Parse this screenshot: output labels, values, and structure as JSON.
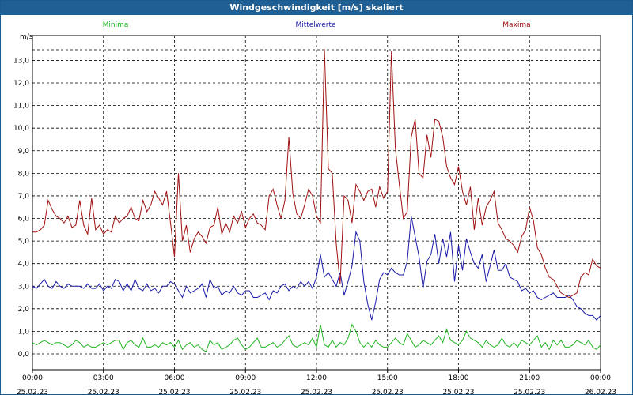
{
  "window": {
    "title": "Windgeschwindigkeit [m/s] skaliert"
  },
  "colors": {
    "minima": "#22b522",
    "mittel": "#1a1aa8",
    "maxima": "#a01010"
  },
  "chart_data": {
    "type": "line",
    "title": "Windgeschwindigkeit [m/s] skaliert",
    "ylabel": "m/s",
    "xlabel": "",
    "ylim": [
      -0.7,
      14.1
    ],
    "xlim": [
      0,
      144
    ],
    "grid": true,
    "legend": "top",
    "y_ticks": [
      "0,0",
      "1,0",
      "2,0",
      "3,0",
      "4,0",
      "5,0",
      "6,0",
      "7,0",
      "8,0",
      "9,0",
      "10,0",
      "11,0",
      "12,0",
      "13,0"
    ],
    "x_ticks": [
      {
        "time": "00:00",
        "date": "25.02.23"
      },
      {
        "time": "03:00",
        "date": "25.02.23"
      },
      {
        "time": "06:00",
        "date": "25.02.23"
      },
      {
        "time": "09:00",
        "date": "25.02.23"
      },
      {
        "time": "12:00",
        "date": "25.02.23"
      },
      {
        "time": "15:00",
        "date": "25.02.23"
      },
      {
        "time": "18:00",
        "date": "25.02.23"
      },
      {
        "time": "21:00",
        "date": "25.02.23"
      },
      {
        "time": "00:00",
        "date": "26.02.23"
      }
    ],
    "series": [
      {
        "name": "Minima",
        "key": "minima",
        "x": [
          0,
          1,
          2,
          3,
          4,
          5,
          6,
          7,
          8,
          9,
          10,
          11,
          12,
          13,
          14,
          15,
          16,
          17,
          18,
          19,
          20,
          21,
          22,
          23,
          24,
          25,
          26,
          27,
          28,
          29,
          30,
          31,
          32,
          33,
          34,
          35,
          36,
          37,
          38,
          39,
          40,
          41,
          42,
          43,
          44,
          45,
          46,
          47,
          48,
          49,
          50,
          51,
          52,
          53,
          54,
          55,
          56,
          57,
          58,
          59,
          60,
          61,
          62,
          63,
          64,
          65,
          66,
          67,
          68,
          69,
          70,
          71,
          72,
          73,
          74,
          75,
          76,
          77,
          78,
          79,
          80,
          81,
          82,
          83,
          84,
          85,
          86,
          87,
          88,
          89,
          90,
          91,
          92,
          93,
          94,
          95,
          96,
          97,
          98,
          99,
          100,
          101,
          102,
          103,
          104,
          105,
          106,
          107,
          108,
          109,
          110,
          111,
          112,
          113,
          114,
          115,
          116,
          117,
          118,
          119,
          120,
          121,
          122,
          123,
          124,
          125,
          126,
          127,
          128,
          129,
          130,
          131,
          132,
          133,
          134,
          135,
          136,
          137,
          138,
          139,
          140,
          141,
          142,
          143,
          144
        ],
        "values": [
          0.5,
          0.4,
          0.5,
          0.6,
          0.5,
          0.4,
          0.5,
          0.5,
          0.4,
          0.3,
          0.4,
          0.6,
          0.5,
          0.3,
          0.4,
          0.3,
          0.3,
          0.4,
          0.5,
          0.4,
          0.5,
          0.6,
          0.6,
          0.2,
          0.5,
          0.6,
          0.4,
          0.3,
          0.7,
          0.3,
          0.3,
          0.4,
          0.3,
          0.5,
          0.4,
          0.5,
          0.3,
          0.6,
          0.2,
          0.4,
          0.5,
          0.3,
          0.4,
          0.2,
          0.1,
          0.6,
          0.4,
          0.5,
          0.2,
          0.3,
          0.4,
          0.6,
          0.7,
          0.4,
          0.2,
          0.3,
          0.5,
          0.7,
          0.3,
          0.3,
          0.4,
          0.5,
          0.3,
          0.4,
          0.6,
          0.8,
          0.4,
          0.3,
          0.4,
          0.5,
          0.4,
          0.7,
          0.3,
          1.3,
          0.4,
          0.3,
          0.6,
          0.3,
          0.5,
          0.4,
          0.7,
          1.3,
          1.0,
          0.5,
          0.3,
          0.5,
          0.3,
          0.6,
          0.4,
          0.3,
          0.3,
          0.5,
          0.7,
          0.5,
          0.4,
          0.9,
          0.6,
          0.3,
          0.4,
          0.6,
          0.5,
          0.4,
          0.6,
          0.8,
          0.5,
          1.1,
          0.6,
          0.5,
          0.4,
          0.6,
          1.0,
          0.7,
          0.6,
          0.5,
          0.3,
          0.6,
          0.4,
          0.3,
          0.4,
          0.7,
          0.4,
          0.3,
          0.5,
          0.3,
          0.6,
          0.5,
          0.4,
          0.6,
          0.8,
          0.3,
          0.5,
          0.2,
          0.6,
          0.4,
          0.6,
          0.3,
          0.3,
          0.4,
          0.6,
          0.5,
          0.4,
          0.6,
          0.3,
          0.2,
          0.4
        ]
      },
      {
        "name": "Mittelwerte",
        "key": "mittel",
        "x": [
          0,
          1,
          2,
          3,
          4,
          5,
          6,
          7,
          8,
          9,
          10,
          11,
          12,
          13,
          14,
          15,
          16,
          17,
          18,
          19,
          20,
          21,
          22,
          23,
          24,
          25,
          26,
          27,
          28,
          29,
          30,
          31,
          32,
          33,
          34,
          35,
          36,
          37,
          38,
          39,
          40,
          41,
          42,
          43,
          44,
          45,
          46,
          47,
          48,
          49,
          50,
          51,
          52,
          53,
          54,
          55,
          56,
          57,
          58,
          59,
          60,
          61,
          62,
          63,
          64,
          65,
          66,
          67,
          68,
          69,
          70,
          71,
          72,
          73,
          74,
          75,
          76,
          77,
          78,
          79,
          80,
          81,
          82,
          83,
          84,
          85,
          86,
          87,
          88,
          89,
          90,
          91,
          92,
          93,
          94,
          95,
          96,
          97,
          98,
          99,
          100,
          101,
          102,
          103,
          104,
          105,
          106,
          107,
          108,
          109,
          110,
          111,
          112,
          113,
          114,
          115,
          116,
          117,
          118,
          119,
          120,
          121,
          122,
          123,
          124,
          125,
          126,
          127,
          128,
          129,
          130,
          131,
          132,
          133,
          134,
          135,
          136,
          137,
          138,
          139,
          140,
          141,
          142,
          143,
          144
        ],
        "values": [
          3.0,
          2.9,
          3.1,
          3.3,
          3.0,
          2.9,
          3.2,
          3.0,
          2.9,
          3.1,
          3.0,
          3.0,
          3.0,
          2.9,
          3.1,
          2.9,
          2.9,
          3.1,
          2.8,
          3.0,
          2.9,
          3.3,
          3.2,
          2.8,
          3.1,
          2.8,
          3.3,
          2.9,
          2.8,
          3.1,
          2.8,
          2.9,
          2.7,
          3.0,
          3.0,
          3.2,
          3.1,
          2.8,
          2.5,
          3.0,
          2.7,
          2.8,
          2.9,
          3.1,
          2.5,
          3.3,
          2.9,
          3.0,
          2.6,
          2.8,
          2.7,
          3.0,
          2.7,
          2.6,
          2.8,
          2.8,
          2.5,
          2.5,
          2.6,
          2.7,
          2.4,
          2.8,
          2.7,
          3.0,
          3.1,
          2.8,
          3.0,
          2.9,
          3.2,
          3.0,
          3.2,
          2.9,
          3.4,
          4.4,
          3.4,
          3.6,
          3.3,
          3.0,
          3.6,
          2.6,
          3.2,
          3.9,
          5.4,
          5.0,
          3.2,
          2.2,
          1.5,
          2.3,
          3.3,
          3.6,
          3.5,
          3.8,
          3.6,
          3.5,
          3.5,
          4.1,
          6.1,
          5.2,
          4.3,
          2.9,
          4.1,
          4.4,
          5.3,
          4.0,
          5.1,
          4.3,
          5.4,
          3.2,
          4.8,
          3.7,
          5.1,
          4.5,
          4.0,
          3.8,
          4.4,
          3.2,
          3.9,
          4.6,
          3.7,
          3.7,
          4.0,
          3.4,
          3.3,
          3.2,
          2.8,
          2.9,
          2.7,
          2.8,
          2.5,
          2.4,
          2.5,
          2.6,
          2.7,
          2.5,
          2.5,
          2.5,
          2.6,
          2.4,
          2.1,
          2.0,
          1.8,
          1.7,
          1.7,
          1.5,
          1.7
        ]
      },
      {
        "name": "Maxima",
        "key": "maxima",
        "x": [
          0,
          1,
          2,
          3,
          4,
          5,
          6,
          7,
          8,
          9,
          10,
          11,
          12,
          13,
          14,
          15,
          16,
          17,
          18,
          19,
          20,
          21,
          22,
          23,
          24,
          25,
          26,
          27,
          28,
          29,
          30,
          31,
          32,
          33,
          34,
          35,
          36,
          37,
          38,
          39,
          40,
          41,
          42,
          43,
          44,
          45,
          46,
          47,
          48,
          49,
          50,
          51,
          52,
          53,
          54,
          55,
          56,
          57,
          58,
          59,
          60,
          61,
          62,
          63,
          64,
          65,
          66,
          67,
          68,
          69,
          70,
          71,
          72,
          73,
          74,
          75,
          76,
          77,
          78,
          79,
          80,
          81,
          82,
          83,
          84,
          85,
          86,
          87,
          88,
          89,
          90,
          91,
          92,
          93,
          94,
          95,
          96,
          97,
          98,
          99,
          100,
          101,
          102,
          103,
          104,
          105,
          106,
          107,
          108,
          109,
          110,
          111,
          112,
          113,
          114,
          115,
          116,
          117,
          118,
          119,
          120,
          121,
          122,
          123,
          124,
          125,
          126,
          127,
          128,
          129,
          130,
          131,
          132,
          133,
          134,
          135,
          136,
          137,
          138,
          139,
          140,
          141,
          142,
          143,
          144
        ],
        "values": [
          5.4,
          5.4,
          5.5,
          5.7,
          6.8,
          6.4,
          6.1,
          6.0,
          5.8,
          6.1,
          5.6,
          5.7,
          6.8,
          5.7,
          5.3,
          6.9,
          5.5,
          5.7,
          5.3,
          5.5,
          5.4,
          6.1,
          5.8,
          6.0,
          6.1,
          6.5,
          6.0,
          5.9,
          6.8,
          6.3,
          6.6,
          7.2,
          6.9,
          6.6,
          7.2,
          5.8,
          4.3,
          8.0,
          5.0,
          5.7,
          4.5,
          5.1,
          5.4,
          5.2,
          4.9,
          5.6,
          5.7,
          6.5,
          5.3,
          5.8,
          5.4,
          6.1,
          5.8,
          6.3,
          5.6,
          6.0,
          6.2,
          5.8,
          5.7,
          5.5,
          7.0,
          7.3,
          6.6,
          6.0,
          6.8,
          9.6,
          7.1,
          6.2,
          6.0,
          6.6,
          7.3,
          7.0,
          6.1,
          5.8,
          13.5,
          8.2,
          8.0,
          4.9,
          3.1,
          7.0,
          6.8,
          5.8,
          7.5,
          7.2,
          6.8,
          7.2,
          7.3,
          6.5,
          7.4,
          6.9,
          7.2,
          13.4,
          9.1,
          7.5,
          6.0,
          6.3,
          9.6,
          10.4,
          8.0,
          7.8,
          9.7,
          8.7,
          10.4,
          10.3,
          9.6,
          8.3,
          7.8,
          7.5,
          8.3,
          7.2,
          6.6,
          7.4,
          5.5,
          6.9,
          5.7,
          6.5,
          6.8,
          7.2,
          5.8,
          5.5,
          5.1,
          5.0,
          4.8,
          4.5,
          5.2,
          5.5,
          6.5,
          5.9,
          4.7,
          4.4,
          3.8,
          3.4,
          3.3,
          3.0,
          2.7,
          2.6,
          2.5,
          2.6,
          2.7,
          3.4,
          3.6,
          3.5,
          4.2,
          3.9,
          3.8
        ]
      }
    ]
  }
}
